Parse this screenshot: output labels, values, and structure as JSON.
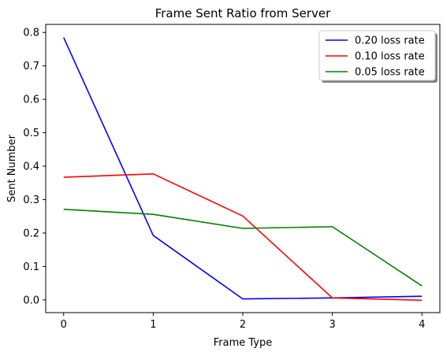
{
  "chart_data": {
    "type": "line",
    "title": "Frame Sent Ratio from Server",
    "xlabel": "Frame Type",
    "ylabel": "Sent Number",
    "x": [
      0,
      1,
      2,
      3,
      4
    ],
    "xlim": [
      -0.2,
      4.2
    ],
    "ylim": [
      -0.038,
      0.824
    ],
    "xticks": [
      0,
      1,
      2,
      3,
      4
    ],
    "xtick_labels": [
      "0",
      "1",
      "2",
      "3",
      "4"
    ],
    "yticks": [
      0.0,
      0.1,
      0.2,
      0.3,
      0.4,
      0.5,
      0.6,
      0.7,
      0.8
    ],
    "ytick_labels": [
      "0.0",
      "0.1",
      "0.2",
      "0.3",
      "0.4",
      "0.5",
      "0.6",
      "0.7",
      "0.8"
    ],
    "grid": false,
    "legend_position": "top-right",
    "series": [
      {
        "name": "0.20 loss rate",
        "color": "#0000ff",
        "values": [
          0.785,
          0.193,
          0.003,
          0.006,
          0.011
        ]
      },
      {
        "name": "0.10 loss rate",
        "color": "#ff0000",
        "values": [
          0.367,
          0.377,
          0.251,
          0.006,
          -0.001
        ]
      },
      {
        "name": "0.05 loss rate",
        "color": "#008000",
        "values": [
          0.271,
          0.256,
          0.214,
          0.219,
          0.042
        ]
      }
    ]
  }
}
